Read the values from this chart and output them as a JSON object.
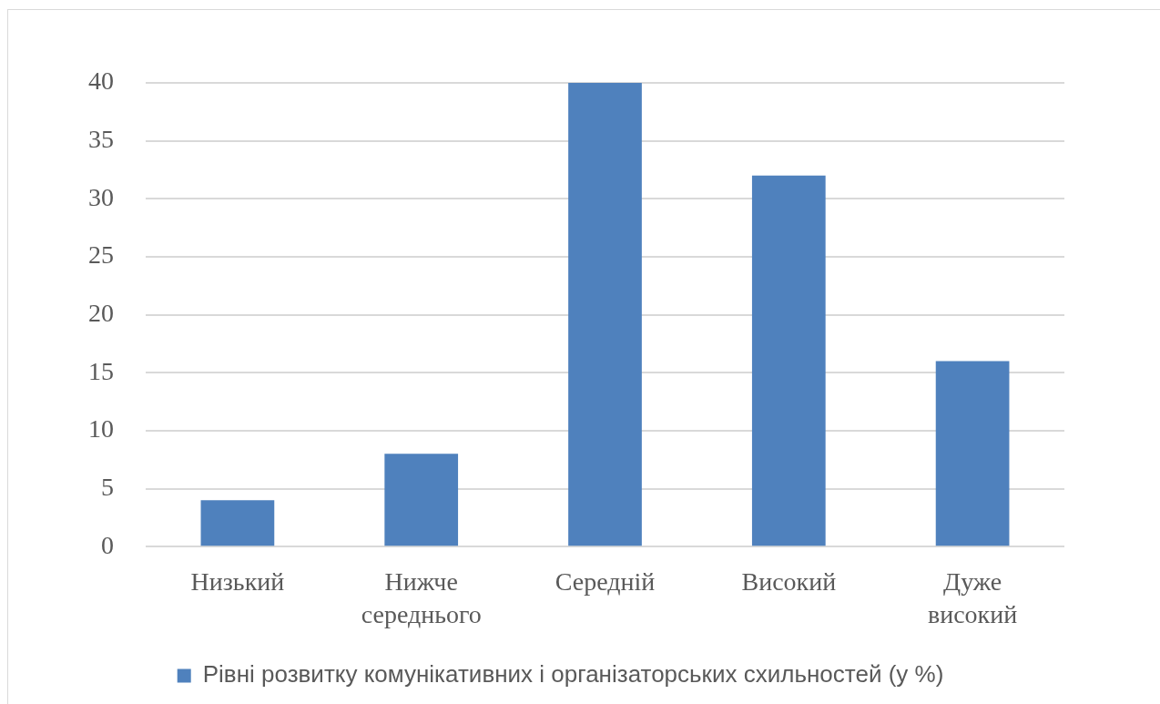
{
  "chart_data": {
    "type": "bar",
    "categories": [
      "Низький",
      "Нижче середнього",
      "Середній",
      "Високий",
      "Дуже високий"
    ],
    "series": [
      {
        "name": "Рівні розвитку комунікативних і організаторських схильностей (у %)",
        "color": "#4f81bd",
        "values": [
          4,
          8,
          40,
          32,
          16
        ]
      }
    ],
    "ylim": [
      0,
      40
    ],
    "yticks": [
      0,
      5,
      10,
      15,
      20,
      25,
      30,
      35,
      40
    ],
    "grid": "y",
    "legend": "bottom"
  }
}
